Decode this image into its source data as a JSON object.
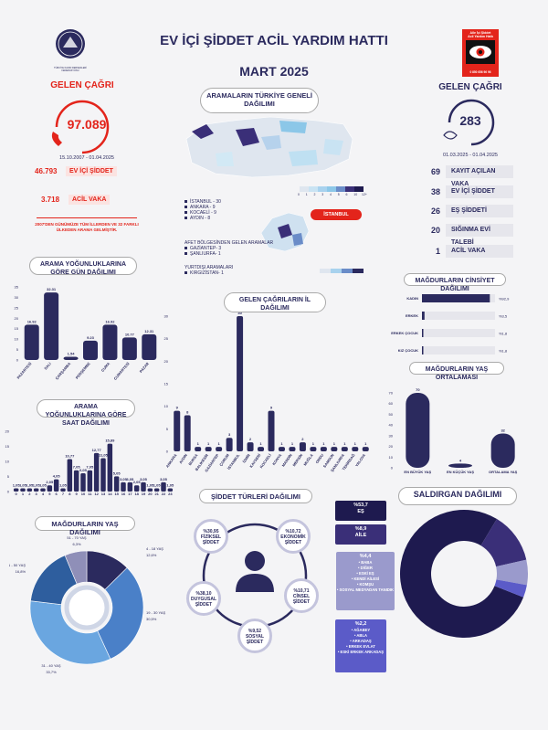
{
  "header": {
    "title": "EV İÇİ ŞİDDET ACİL YARDIM HATTI",
    "subtitle": "MART 2025",
    "logo_left_text": "TÜRKİYE KADIN DERNEKLERİ FEDERASYONU",
    "logo_right_lines": [
      "Aile İçi Şiddet",
      "Acil Yardım Hattı",
      "0 850 656 96 96"
    ]
  },
  "left_panel": {
    "heading": "GELEN ÇAĞRI",
    "total": "97.089",
    "range": "15.10.2007 - 01.04.2025",
    "stats": [
      {
        "value": "46.793",
        "label": "EV İÇİ ŞİDDET"
      },
      {
        "value": "3.718",
        "label": "ACİL VAKA"
      }
    ],
    "note": "2007'DEN GÜNÜMÜZE TÜM İLLERDEN VE 32 FARKLI ÜLKEDEN ARAMA GELMİŞTİR."
  },
  "right_panel": {
    "heading": "GELEN ÇAĞRI",
    "total": "283",
    "range": "01.03.2025 - 01.04.2025",
    "stats": [
      {
        "value": "69",
        "label": "KAYIT AÇILAN VAKA"
      },
      {
        "value": "38",
        "label": "EV İÇİ ŞİDDET"
      },
      {
        "value": "26",
        "label": "EŞ ŞİDDETİ"
      },
      {
        "value": "20",
        "label": "SIĞINMA EVİ TALEBİ"
      },
      {
        "value": "1",
        "label": "ACİL VAKA"
      }
    ]
  },
  "map": {
    "heading": "ARAMALARIN TÜRKİYE GENELİ DAĞILIMI",
    "legend_ticks": [
      "0",
      "1",
      "2",
      "3",
      "4",
      "5",
      "6",
      "10",
      "12+"
    ],
    "top_cities": [
      "İSTANBUL - 30",
      "ANKARA - 9",
      "KOCAELİ - 9",
      "AYDIN - 8"
    ],
    "istanbul_tag": "İSTANBUL",
    "afet_title": "AFET BÖLGESİNDEN GELEN ARAMALAR",
    "afet_items": [
      "GAZİANTEP- 3",
      "ŞANLIURFA- 1"
    ],
    "abroad_title": "YURTDIŞI ARAMALARI",
    "abroad_items": [
      "KIRGIZİSTAN- 1"
    ]
  },
  "colors": {
    "navy": "#2b2a5e",
    "red": "#e3241b",
    "grey": "#8f8fb8"
  },
  "chart_data": [
    {
      "id": "weekday",
      "type": "bar",
      "title": "ARAMA YOĞUNLUKLARINA GÖRE GÜN DAĞILIMI",
      "categories": [
        "PAZARTESİ",
        "SALI",
        "ÇARŞAMBA",
        "PERŞEMBE",
        "CUMA",
        "CUMARTESİ",
        "PAZAR"
      ],
      "values": [
        16.92,
        32.31,
        1.54,
        9.23,
        16.92,
        10.77,
        12.31
      ],
      "ylim": [
        0,
        35
      ],
      "yticks": [
        0,
        5,
        10,
        15,
        20,
        25,
        30,
        35
      ]
    },
    {
      "id": "hourly",
      "type": "bar",
      "title": "ARAMA YOĞUNLUKLARINA GÖRE SAAT DAĞILIMI",
      "categories": [
        "0",
        "1",
        "2",
        "3",
        "4",
        "5",
        "6",
        "7",
        "8",
        "9",
        "10",
        "11",
        "12",
        "13",
        "14",
        "15",
        "16",
        "17",
        "18",
        "19",
        "20",
        "21",
        "22",
        "23"
      ],
      "values": [
        1.05,
        1.05,
        1.05,
        1.05,
        1.05,
        2.05,
        4.05,
        1.05,
        10.77,
        7.05,
        6.05,
        7.05,
        12.77,
        11.05,
        15.89,
        5.05,
        3.05,
        3.05,
        2.05,
        3.05,
        1.05,
        1.05,
        3.05,
        1.05
      ],
      "value_labels": [
        "1,05",
        "1,05",
        "1,05",
        "1,05",
        "1,05",
        "2,05",
        "4,05",
        "1,05",
        "10,77",
        "7,05",
        "6,05",
        "7,05",
        "12,77",
        "11,05",
        "15,89",
        "5,05",
        "3,05",
        "3,05",
        "2,05",
        "3,05",
        "1,05",
        "1,05",
        "3,05",
        "1,05"
      ],
      "ylim": [
        0,
        20
      ],
      "yticks": [
        0,
        5,
        10,
        15,
        20
      ]
    },
    {
      "id": "city",
      "type": "bar",
      "title": "GELEN ÇAĞRILARIN İL DAĞILIMI",
      "categories": [
        "ANKARA",
        "AYDIN",
        "BURSA",
        "BALIKESİR",
        "GAZİANTEP",
        "ÇORUM",
        "İSTANBUL",
        "İZMİR",
        "KAYSERİ",
        "KOCAELİ",
        "KONYA",
        "MARDİN",
        "MERSİN",
        "MUĞLA",
        "ORDU",
        "SAMSUN",
        "ŞANLIURFA",
        "TEKİRDAĞ",
        "YALOVA"
      ],
      "values": [
        9,
        8,
        1,
        1,
        1,
        3,
        30,
        2,
        1,
        9,
        1,
        1,
        2,
        1,
        1,
        1,
        1,
        1,
        1
      ],
      "ylim": [
        0,
        30
      ],
      "yticks": [
        0,
        5,
        10,
        15,
        20,
        25,
        30
      ]
    },
    {
      "id": "gender",
      "type": "bar",
      "orientation": "horizontal",
      "title": "MAĞDURLARIN CİNSİYET DAĞILIMI",
      "categories": [
        "KADIN",
        "ERKEK",
        "ERKEK ÇOCUK",
        "KIZ ÇOCUK"
      ],
      "values": [
        92.9,
        3.5,
        1.8,
        1.8
      ],
      "value_labels": [
        "%92,9",
        "%3,5",
        "%1,8",
        "%1,8"
      ]
    },
    {
      "id": "age_avg",
      "type": "bar",
      "title": "MAĞDURLARIN YAŞ ORTALAMASI",
      "categories": [
        "EN BÜYÜK YAŞ",
        "EN KÜÇÜK YAŞ",
        "ORTALAMA YAŞ"
      ],
      "values": [
        70,
        4,
        32
      ],
      "ylim": [
        0,
        70
      ],
      "yticks": [
        0,
        10,
        20,
        30,
        40,
        50,
        60,
        70
      ]
    },
    {
      "id": "age_dist",
      "type": "pie",
      "title": "MAĞDURLARIN YAŞ DAĞILIMI",
      "labels": [
        "4 - 18 YAŞ",
        "19 - 30 YAŞ",
        "31 - 40 YAŞ",
        "41 - 50 YAŞ",
        "51 - 70 YAŞ"
      ],
      "values": [
        12.6,
        30.5,
        33.7,
        16.8,
        6.3
      ],
      "value_labels": [
        "12,6%",
        "30,5%",
        "33,7%",
        "16,8%",
        "6,3%"
      ],
      "colors": [
        "#2b2a5e",
        "#4a80c8",
        "#6aa6e0",
        "#2e5e9e",
        "#8f8fb8"
      ]
    },
    {
      "id": "violence_types",
      "type": "table",
      "title": "ŞİDDET TÜRLERİ DAĞILIMI",
      "items": [
        {
          "value": "%30,95",
          "label": "FİZİKSEL ŞİDDET"
        },
        {
          "value": "%10,72",
          "label": "EKONOMİK ŞİDDET"
        },
        {
          "value": "%10,71",
          "label": "CİNSEL ŞİDDET"
        },
        {
          "value": "%9,52",
          "label": "SOSYAL ŞİDDET"
        },
        {
          "value": "%38,10",
          "label": "DUYGUSAL ŞİDDET"
        }
      ]
    },
    {
      "id": "perpetrator",
      "type": "pie",
      "title": "SALDIRGAN DAĞILIMI",
      "labels": [
        "EŞ",
        "AİLE",
        "DİĞER",
        "AĞABEY"
      ],
      "values": [
        53.7,
        8.9,
        4.4,
        2.2
      ],
      "value_labels": [
        "%53,7",
        "%8,9",
        "%4,4",
        "%2,2"
      ],
      "details": [
        [],
        [],
        [
          "BABA",
          "DİĞER",
          "ESKİ EŞ",
          "KENDİ AİLESİ",
          "KOMŞU",
          "SOSYAL MEDYADAN TANIDIK"
        ],
        [
          "AĞABEY",
          "ABLA",
          "ARKADAŞ",
          "ERKEK EVLAT",
          "ESKİ ERKEK ARKADAŞ"
        ]
      ],
      "colors": [
        "#1e1a4f",
        "#3a2f78",
        "#9a9acc",
        "#5b5bc8"
      ]
    }
  ]
}
